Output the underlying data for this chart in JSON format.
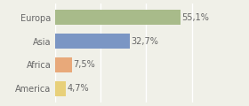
{
  "categories": [
    "Europa",
    "Asia",
    "Africa",
    "America"
  ],
  "values": [
    55.1,
    32.7,
    7.5,
    4.7
  ],
  "labels": [
    "55,1%",
    "32,7%",
    "7,5%",
    "4,7%"
  ],
  "bar_colors": [
    "#a8bb8a",
    "#7b96c4",
    "#e8a97a",
    "#e8d07a"
  ],
  "background_color": "#f0f0e8",
  "xlim": [
    0,
    72
  ],
  "bar_height": 0.62,
  "label_fontsize": 7.0,
  "category_fontsize": 7.0,
  "grid_color": "#ffffff",
  "grid_xticks": [
    0,
    20,
    40,
    60
  ]
}
